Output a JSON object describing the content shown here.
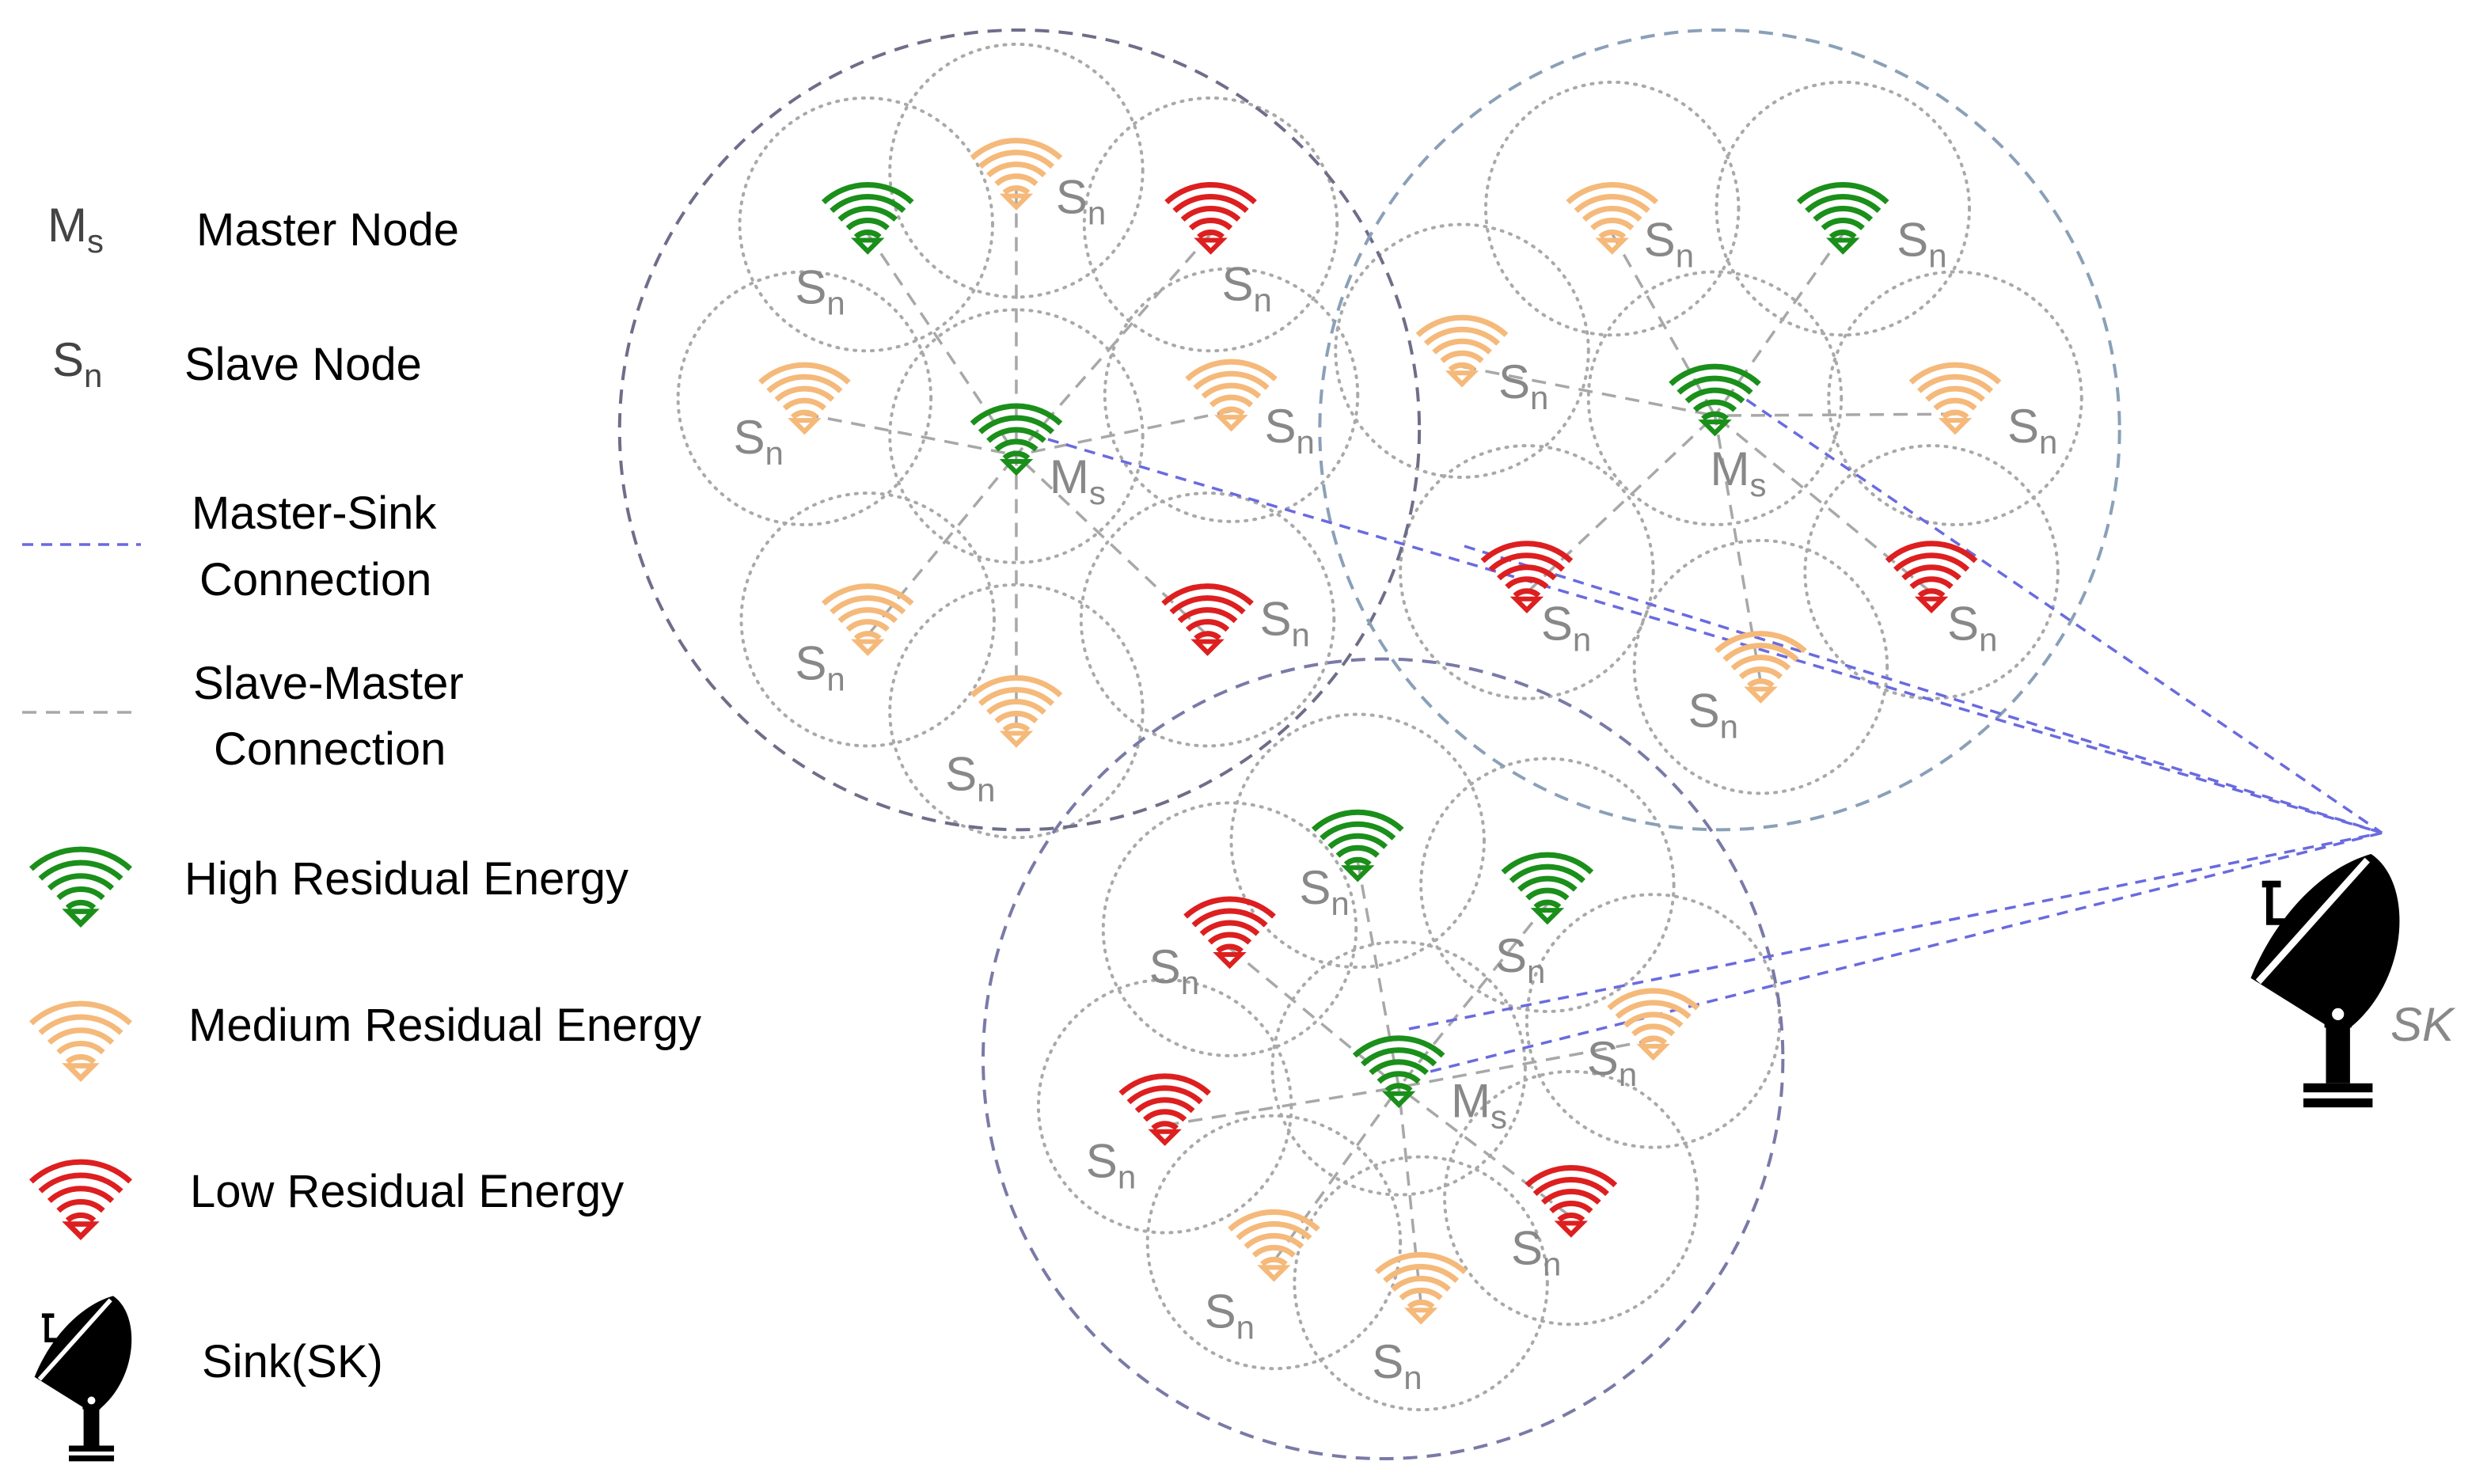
{
  "colors": {
    "high": "#1a8f1a",
    "medium": "#f5b97a",
    "low": "#dd1f1f",
    "master_sink_link": "#6a6ae0",
    "slave_master_link": "#a8a8a8",
    "range_circle": "#a9a9a9",
    "cluster_boundary_a": "#6e6e8a",
    "cluster_boundary_b": "#8aa0b8",
    "cluster_boundary_c": "#7a7aa8"
  },
  "legend": {
    "master_symbol": {
      "main": "M",
      "sub": "s"
    },
    "master_label": "Master Node",
    "slave_symbol": {
      "main": "S",
      "sub": "n"
    },
    "slave_label": "Slave Node",
    "master_sink_label_line1": "Master-Sink",
    "master_sink_label_line2": "Connection",
    "slave_master_label_line1": "Slave-Master",
    "slave_master_label_line2": "Connection",
    "high_label": "High Residual Energy",
    "medium_label": "Medium Residual Energy",
    "low_label": "Low Residual Energy",
    "sink_label": "Sink(SK)",
    "icons": [
      "wifi-icon-high",
      "wifi-icon-medium",
      "wifi-icon-low",
      "satellite-dish-icon"
    ]
  },
  "labels": {
    "master": {
      "main": "M",
      "sub": "s"
    },
    "slave": {
      "main": "S",
      "sub": "n"
    },
    "sink": "SK"
  },
  "clusters": [
    {
      "name": "cluster-top-left",
      "master": {
        "energy": "high"
      },
      "slaves": [
        {
          "energy": "high"
        },
        {
          "energy": "medium"
        },
        {
          "energy": "low"
        },
        {
          "energy": "medium"
        },
        {
          "energy": "medium"
        },
        {
          "energy": "medium"
        },
        {
          "energy": "low"
        },
        {
          "energy": "medium"
        }
      ]
    },
    {
      "name": "cluster-top-right",
      "master": {
        "energy": "high"
      },
      "slaves": [
        {
          "energy": "medium"
        },
        {
          "energy": "high"
        },
        {
          "energy": "medium"
        },
        {
          "energy": "medium"
        },
        {
          "energy": "low"
        },
        {
          "energy": "low"
        },
        {
          "energy": "medium"
        }
      ]
    },
    {
      "name": "cluster-bottom",
      "master": {
        "energy": "high"
      },
      "slaves": [
        {
          "energy": "high"
        },
        {
          "energy": "high"
        },
        {
          "energy": "low"
        },
        {
          "energy": "medium"
        },
        {
          "energy": "low"
        },
        {
          "energy": "low"
        },
        {
          "energy": "medium"
        },
        {
          "energy": "medium"
        }
      ]
    }
  ]
}
